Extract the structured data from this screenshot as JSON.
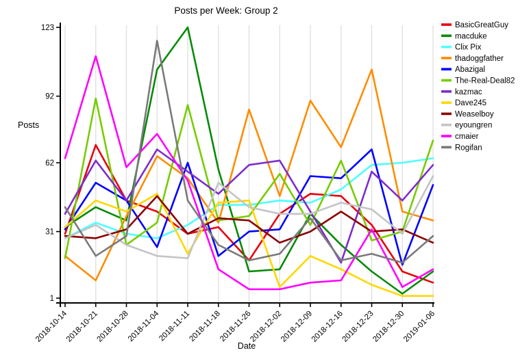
{
  "chart_data": {
    "type": "line",
    "title": "Posts per Week: Group 2",
    "xlabel": "Date",
    "ylabel": "Posts",
    "x_categories": [
      "2018-10-14",
      "2018-10-21",
      "2018-10-28",
      "2018-11-04",
      "2018-11-11",
      "2018-11-18",
      "2018-11-26",
      "2018-12-02",
      "2018-12-09",
      "2018-12-16",
      "2018-12-23",
      "2018-12-30",
      "2019-01-06"
    ],
    "yticks": [
      1,
      31,
      62,
      92,
      123
    ],
    "ylim": [
      1,
      123
    ],
    "grid": "vertical-light-gray",
    "gridline_color": "#e0e0e0",
    "axis_color": "#000000",
    "legend_position": "top-right",
    "series": [
      {
        "name": "BasicGreatGuy",
        "color": "#e8000d",
        "values": [
          30,
          70,
          45,
          40,
          30,
          33,
          18,
          39,
          48,
          47,
          34,
          13,
          8
        ]
      },
      {
        "name": "macduke",
        "color": "#068a06",
        "values": [
          33,
          42,
          36,
          104,
          123,
          59,
          13,
          14,
          39,
          25,
          13,
          3,
          13
        ]
      },
      {
        "name": "Clix Pix",
        "color": "#4dffff",
        "values": [
          28,
          35,
          30,
          28,
          34,
          43,
          43,
          45,
          44,
          50,
          61,
          62,
          64
        ]
      },
      {
        "name": "thadoggfather",
        "color": "#ff8c00",
        "values": [
          20,
          9,
          38,
          65,
          55,
          35,
          86,
          47,
          90,
          69,
          104,
          40,
          36
        ]
      },
      {
        "name": "Abazigal",
        "color": "#0000ff",
        "values": [
          32,
          53,
          45,
          24,
          62,
          20,
          31,
          32,
          56,
          55,
          68,
          16,
          52
        ]
      },
      {
        "name": "The-Real-Deal82",
        "color": "#77cc00",
        "values": [
          19,
          91,
          25,
          35,
          88,
          36,
          38,
          57,
          34,
          63,
          27,
          31,
          72
        ]
      },
      {
        "name": "kazmac",
        "color": "#7d2ccd",
        "values": [
          39,
          63,
          45,
          68,
          58,
          48,
          61,
          63,
          40,
          17,
          58,
          45,
          61
        ]
      },
      {
        "name": "Dave245",
        "color": "#ffd700",
        "values": [
          33,
          45,
          40,
          48,
          21,
          44,
          45,
          6,
          20,
          14,
          7,
          2,
          2
        ]
      },
      {
        "name": "Weaselboy",
        "color": "#8b0000",
        "values": [
          29,
          28,
          32,
          47,
          30,
          37,
          36,
          26,
          31,
          40,
          31,
          32,
          26
        ]
      },
      {
        "name": "eyoungren",
        "color": "#c4c4c4",
        "values": [
          28,
          34,
          25,
          20,
          19,
          53,
          42,
          39,
          39,
          44,
          41,
          30,
          56
        ]
      },
      {
        "name": "cmaier",
        "color": "#ff00ff",
        "values": [
          64,
          110,
          60,
          75,
          54,
          14,
          5,
          5,
          8,
          9,
          32,
          6,
          14
        ]
      },
      {
        "name": "Rogifan",
        "color": "#7a7a7a",
        "values": [
          42,
          20,
          29,
          117,
          45,
          25,
          18,
          21,
          37,
          18,
          21,
          17,
          29
        ]
      }
    ]
  }
}
